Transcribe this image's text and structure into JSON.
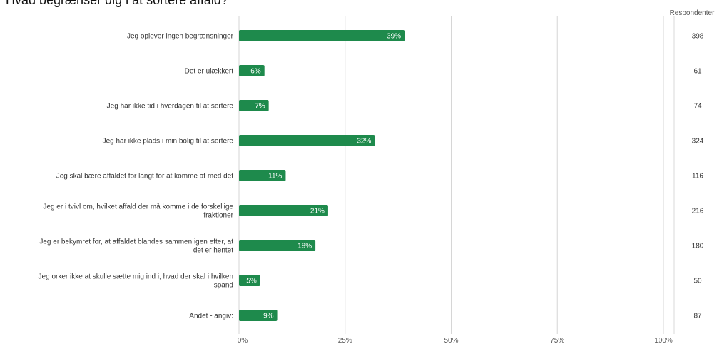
{
  "question": "Hvad begrænser dig i at sortere affald?",
  "respondents_header": "Respondenter",
  "colors": {
    "bar": "#1e8a4c",
    "bar_label": "#ffffff",
    "grid": "#d6d6d6",
    "separator": "#d9d9d9",
    "text": "#333333"
  },
  "chart_data": {
    "type": "bar",
    "orientation": "horizontal",
    "title": "Hvad begrænser dig i at sortere affald?",
    "categories": [
      [
        "Jeg oplever ingen begrænsninger"
      ],
      [
        "Det er ulækkert"
      ],
      [
        "Jeg har ikke tid i hverdagen til at sortere"
      ],
      [
        "Jeg har ikke plads i min bolig til at sortere"
      ],
      [
        "Jeg skal bære affaldet for langt for at komme af med det"
      ],
      [
        "Jeg er i tvivl om, hvilket affald der må komme i de forskellige",
        "fraktioner"
      ],
      [
        "Jeg er bekymret for, at affaldet blandes sammen igen efter, at",
        "det er hentet"
      ],
      [
        "Jeg orker ikke at skulle sætte mig ind i, hvad der skal i hvilken",
        "spand"
      ],
      [
        "Andet - angiv:"
      ]
    ],
    "values": [
      39,
      6,
      7,
      32,
      11,
      21,
      18,
      5,
      9
    ],
    "value_labels": [
      "39%",
      "6%",
      "7%",
      "32%",
      "11%",
      "21%",
      "18%",
      "5%",
      "9%"
    ],
    "respondents": [
      398,
      61,
      74,
      324,
      116,
      216,
      180,
      50,
      87
    ],
    "x_ticks": [
      0,
      25,
      50,
      75,
      100
    ],
    "x_tick_labels": [
      "0%",
      "25%",
      "50%",
      "75%",
      "100%"
    ],
    "xlim": [
      0,
      100
    ],
    "grid": true,
    "legend": "none"
  }
}
